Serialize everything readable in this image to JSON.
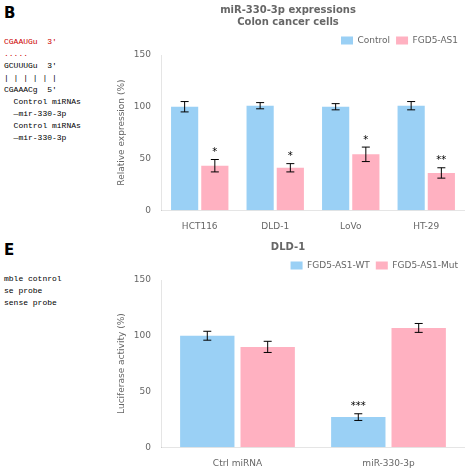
{
  "chart_data": [
    {
      "type": "bar",
      "panel_label": "B",
      "title": "miR-330-3p expressions\nColon cancer cells",
      "y_label": "Relative expression (%)",
      "categories": [
        "HCT116",
        "DLD-1",
        "LoVo",
        "HT-29"
      ],
      "series": [
        {
          "name": "Control",
          "values": [
            100,
            101,
            100,
            101
          ],
          "errors": [
            5,
            3,
            3,
            4
          ]
        },
        {
          "name": "FGD5-AS1",
          "values": [
            43,
            41,
            54,
            36
          ],
          "errors": [
            6,
            4,
            7,
            5
          ],
          "significance": [
            "*",
            "*",
            "*",
            "**"
          ]
        }
      ],
      "ylim": [
        0,
        150
      ],
      "yticks": [
        0,
        50,
        100,
        150
      ],
      "grid": false,
      "legend": "upper right",
      "annotations": [
        {
          "text": "CGAAUGu  3'",
          "color": "#cc0000"
        },
        {
          "text": ".....",
          "color": "#cc0000"
        },
        {
          "text": "GCUUUGu  3'",
          "color": "#000000"
        },
        {
          "text": "| | | | | |",
          "color": "#000000"
        },
        {
          "text": "CGAAACg  5'",
          "color": "#000000"
        },
        {
          "text": "  Control miRNAs",
          "color": "#000000"
        },
        {
          "text": "  —mir-330-3p",
          "color": "#000000"
        },
        {
          "text": "  Control miRNAs",
          "color": "#000000"
        },
        {
          "text": "  —mir-330-3p",
          "color": "#000000"
        }
      ]
    },
    {
      "type": "bar",
      "panel_label": "E",
      "title": "DLD-1",
      "y_label": "Luciferase activity (%)",
      "categories": [
        "Ctrl miRNA",
        "miR-330-3p"
      ],
      "series": [
        {
          "name": "FGD5-AS1-WT",
          "values": [
            100,
            27
          ],
          "errors": [
            4,
            3
          ],
          "significance": [
            null,
            "***"
          ]
        },
        {
          "name": "FGD5-AS1-Mut",
          "values": [
            90,
            107
          ],
          "errors": [
            5,
            4
          ]
        }
      ],
      "ylim": [
        0,
        150
      ],
      "yticks": [
        0,
        50,
        100,
        150
      ],
      "grid": false,
      "legend": "upper right",
      "annotations": [
        {
          "text": "mble cotnrol",
          "color": "#000000"
        },
        {
          "text": "se probe",
          "color": "#000000"
        },
        {
          "text": "sense probe",
          "color": "#000000"
        }
      ]
    }
  ]
}
